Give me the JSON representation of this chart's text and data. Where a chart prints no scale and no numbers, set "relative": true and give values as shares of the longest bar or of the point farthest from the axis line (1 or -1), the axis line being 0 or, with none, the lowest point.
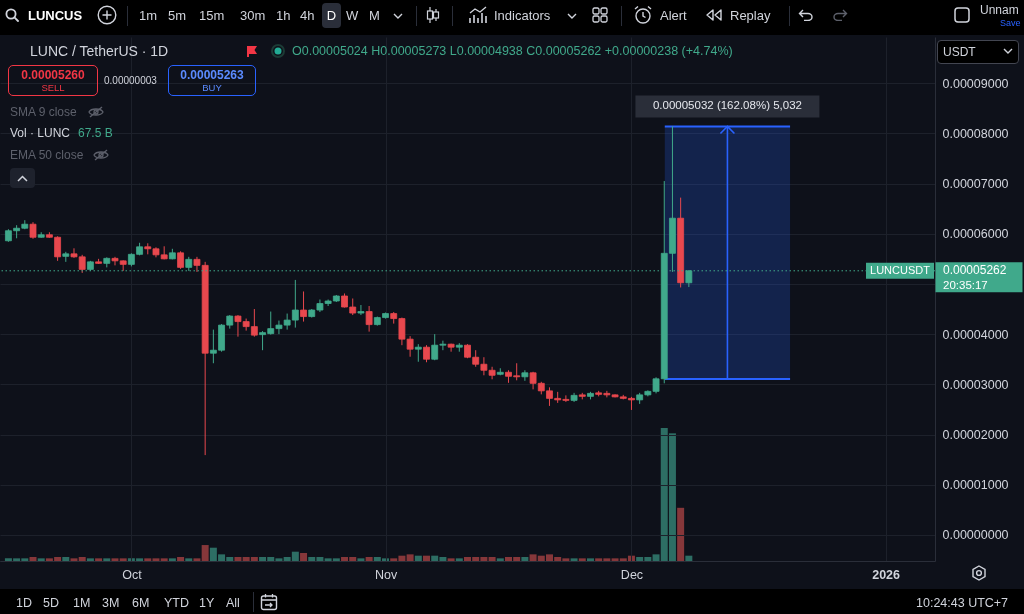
{
  "chart_data": [
    {
      "type": "candlestick",
      "title": "LUNC / TetherUS · 1D",
      "x": [
        "2025-09-16",
        "2025-09-17",
        "2025-09-18",
        "2025-09-19",
        "2025-09-20",
        "2025-09-21",
        "2025-09-22",
        "2025-09-23",
        "2025-09-24",
        "2025-09-25",
        "2025-09-26",
        "2025-09-27",
        "2025-09-28",
        "2025-09-29",
        "2025-09-30",
        "2025-10-01",
        "2025-10-02",
        "2025-10-03",
        "2025-10-04",
        "2025-10-05",
        "2025-10-06",
        "2025-10-07",
        "2025-10-08",
        "2025-10-09",
        "2025-10-10",
        "2025-10-11",
        "2025-10-12",
        "2025-10-13",
        "2025-10-14",
        "2025-10-15",
        "2025-10-16",
        "2025-10-17",
        "2025-10-18",
        "2025-10-19",
        "2025-10-20",
        "2025-10-21",
        "2025-10-22",
        "2025-10-23",
        "2025-10-24",
        "2025-10-25",
        "2025-10-26",
        "2025-10-27",
        "2025-10-28",
        "2025-10-29",
        "2025-10-30",
        "2025-10-31",
        "2025-11-01",
        "2025-11-02",
        "2025-11-03",
        "2025-11-04",
        "2025-11-05",
        "2025-11-06",
        "2025-11-07",
        "2025-11-08",
        "2025-11-09",
        "2025-11-10",
        "2025-11-11",
        "2025-11-12",
        "2025-11-13",
        "2025-11-14",
        "2025-11-15",
        "2025-11-16",
        "2025-11-17",
        "2025-11-18",
        "2025-11-19",
        "2025-11-20",
        "2025-11-21",
        "2025-11-22",
        "2025-11-23",
        "2025-11-24",
        "2025-11-25",
        "2025-11-26",
        "2025-11-27",
        "2025-11-28",
        "2025-11-29",
        "2025-11-30",
        "2025-12-01",
        "2025-12-02",
        "2025-12-03",
        "2025-12-04",
        "2025-12-05",
        "2025-12-06",
        "2025-12-07",
        "2025-12-08"
      ],
      "ohlc": [
        [
          5.86e-05,
          6.09e-05,
          5.84e-05,
          6.06e-05
        ],
        [
          6.06e-05,
          6.17e-05,
          5.91e-05,
          6.11e-05
        ],
        [
          6.11e-05,
          6.27e-05,
          6.09e-05,
          6.19e-05
        ],
        [
          6.19e-05,
          6.23e-05,
          5.9e-05,
          5.93e-05
        ],
        [
          5.93e-05,
          6.03e-05,
          5.92e-05,
          5.98e-05
        ],
        [
          5.98e-05,
          6.03e-05,
          5.92e-05,
          5.93e-05
        ],
        [
          5.93e-05,
          5.95e-05,
          5.46e-05,
          5.54e-05
        ],
        [
          5.55e-05,
          5.64e-05,
          5.44e-05,
          5.6e-05
        ],
        [
          5.6e-05,
          5.71e-05,
          5.52e-05,
          5.54e-05
        ],
        [
          5.54e-05,
          5.58e-05,
          5.22e-05,
          5.29e-05
        ],
        [
          5.29e-05,
          5.46e-05,
          5.26e-05,
          5.44e-05
        ],
        [
          5.44e-05,
          5.5e-05,
          5.4e-05,
          5.41e-05
        ],
        [
          5.41e-05,
          5.53e-05,
          5.33e-05,
          5.51e-05
        ],
        [
          5.51e-05,
          5.54e-05,
          5.37e-05,
          5.46e-05
        ],
        [
          5.46e-05,
          5.47e-05,
          5.26e-05,
          5.39e-05
        ],
        [
          5.39e-05,
          5.61e-05,
          5.35e-05,
          5.59e-05
        ],
        [
          5.59e-05,
          5.82e-05,
          5.57e-05,
          5.74e-05
        ],
        [
          5.74e-05,
          5.81e-05,
          5.59e-05,
          5.7e-05
        ],
        [
          5.7e-05,
          5.73e-05,
          5.53e-05,
          5.58e-05
        ],
        [
          5.58e-05,
          5.75e-05,
          5.49e-05,
          5.5e-05
        ],
        [
          5.5e-05,
          5.7e-05,
          5.49e-05,
          5.62e-05
        ],
        [
          5.62e-05,
          5.65e-05,
          5.3e-05,
          5.33e-05
        ],
        [
          5.33e-05,
          5.54e-05,
          5.26e-05,
          5.49e-05
        ],
        [
          5.49e-05,
          5.54e-05,
          5.24e-05,
          5.37e-05
        ],
        [
          5.37e-05,
          5.44e-05,
          1.59e-05,
          3.62e-05
        ],
        [
          3.62e-05,
          4.09e-05,
          3.42e-05,
          3.68e-05
        ],
        [
          3.68e-05,
          4.2e-05,
          3.65e-05,
          4.18e-05
        ],
        [
          4.18e-05,
          4.38e-05,
          4.11e-05,
          4.36e-05
        ],
        [
          4.36e-05,
          4.38e-05,
          3.95e-05,
          4.25e-05
        ],
        [
          4.25e-05,
          4.31e-05,
          4.07e-05,
          4.15e-05
        ],
        [
          4.15e-05,
          4.5e-05,
          3.95e-05,
          3.98e-05
        ],
        [
          3.99e-05,
          4.06e-05,
          3.68e-05,
          4.03e-05
        ],
        [
          4.01e-05,
          4.45e-05,
          3.99e-05,
          4.11e-05
        ],
        [
          4.11e-05,
          4.27e-05,
          4e-05,
          4.18e-05
        ],
        [
          4.18e-05,
          4.41e-05,
          4.09e-05,
          4.28e-05
        ],
        [
          4.28e-05,
          5.08e-05,
          4.13e-05,
          4.48e-05
        ],
        [
          4.48e-05,
          4.85e-05,
          4.25e-05,
          4.35e-05
        ],
        [
          4.35e-05,
          4.5e-05,
          4.33e-05,
          4.48e-05
        ],
        [
          4.48e-05,
          4.69e-05,
          4.44e-05,
          4.61e-05
        ],
        [
          4.61e-05,
          4.69e-05,
          4.56e-05,
          4.66e-05
        ],
        [
          4.66e-05,
          4.78e-05,
          4.64e-05,
          4.76e-05
        ],
        [
          4.76e-05,
          4.81e-05,
          4.53e-05,
          4.54e-05
        ],
        [
          4.54e-05,
          4.71e-05,
          4.38e-05,
          4.42e-05
        ],
        [
          4.42e-05,
          4.58e-05,
          4.38e-05,
          4.45e-05
        ],
        [
          4.45e-05,
          4.56e-05,
          4.05e-05,
          4.19e-05
        ],
        [
          4.19e-05,
          4.35e-05,
          4.17e-05,
          4.33e-05
        ],
        [
          4.33e-05,
          4.43e-05,
          4.31e-05,
          4.41e-05
        ],
        [
          4.41e-05,
          4.44e-05,
          4.21e-05,
          4.31e-05
        ],
        [
          4.31e-05,
          4.33e-05,
          3.78e-05,
          3.9e-05
        ],
        [
          3.9e-05,
          3.96e-05,
          3.55e-05,
          3.7e-05
        ],
        [
          3.7e-05,
          3.8e-05,
          3.45e-05,
          3.74e-05
        ],
        [
          3.74e-05,
          3.78e-05,
          3.44e-05,
          3.5e-05
        ],
        [
          3.5e-05,
          4e-05,
          3.48e-05,
          3.78e-05
        ],
        [
          3.78e-05,
          3.87e-05,
          3.68e-05,
          3.8e-05
        ],
        [
          3.8e-05,
          3.81e-05,
          3.65e-05,
          3.74e-05
        ],
        [
          3.74e-05,
          3.82e-05,
          3.65e-05,
          3.78e-05
        ],
        [
          3.78e-05,
          3.8e-05,
          3.52e-05,
          3.54e-05
        ],
        [
          3.54e-05,
          3.68e-05,
          3.35e-05,
          3.4e-05
        ],
        [
          3.4e-05,
          3.54e-05,
          3.18e-05,
          3.28e-05
        ],
        [
          3.28e-05,
          3.35e-05,
          3.1e-05,
          3.18e-05
        ],
        [
          3.2e-05,
          3.32e-05,
          3.18e-05,
          3.24e-05
        ],
        [
          3.24e-05,
          3.28e-05,
          3.03e-05,
          3.16e-05
        ],
        [
          3.17e-05,
          3.42e-05,
          3.08e-05,
          3.15e-05
        ],
        [
          3.15e-05,
          3.28e-05,
          3.07e-05,
          3.23e-05
        ],
        [
          3.23e-05,
          3.25e-05,
          2.9e-05,
          3.02e-05
        ],
        [
          3.02e-05,
          3.05e-05,
          2.8e-05,
          2.87e-05
        ],
        [
          2.87e-05,
          2.94e-05,
          2.57e-05,
          2.72e-05
        ],
        [
          2.72e-05,
          2.85e-05,
          2.63e-05,
          2.69e-05
        ],
        [
          2.7e-05,
          2.78e-05,
          2.65e-05,
          2.68e-05
        ],
        [
          2.68e-05,
          2.83e-05,
          2.65e-05,
          2.78e-05
        ],
        [
          2.79e-05,
          2.83e-05,
          2.7e-05,
          2.76e-05
        ],
        [
          2.76e-05,
          2.85e-05,
          2.7e-05,
          2.82e-05
        ],
        [
          2.83e-05,
          2.87e-05,
          2.76e-05,
          2.8e-05
        ],
        [
          2.82e-05,
          2.87e-05,
          2.74e-05,
          2.79e-05
        ],
        [
          2.79e-05,
          2.8e-05,
          2.74e-05,
          2.75e-05
        ],
        [
          2.75e-05,
          2.79e-05,
          2.7e-05,
          2.72e-05
        ],
        [
          2.72e-05,
          2.75e-05,
          2.49e-05,
          2.69e-05
        ],
        [
          2.69e-05,
          2.83e-05,
          2.61e-05,
          2.79e-05
        ],
        [
          2.79e-05,
          2.88e-05,
          2.76e-05,
          2.86e-05
        ],
        [
          2.86e-05,
          3.14e-05,
          2.82e-05,
          3.11e-05
        ],
        [
          3.11e-05,
          7.05e-05,
          3.02e-05,
          5.61e-05
        ],
        [
          5.61e-05,
          8.14e-05,
          5.24e-05,
          6.31e-05
        ],
        [
          6.31e-05,
          6.72e-05,
          4.93e-05,
          5.024e-05
        ],
        [
          5.024e-05,
          5.273e-05,
          4.938e-05,
          5.262e-05
        ]
      ],
      "colors": [
        "#40a98b",
        "#40a98b",
        "#40a98b",
        "#e8484e",
        "#40a98b",
        "#e8484e",
        "#e8484e",
        "#40a98b",
        "#e8484e",
        "#e8484e",
        "#40a98b",
        "#e8484e",
        "#40a98b",
        "#e8484e",
        "#e8484e",
        "#40a98b",
        "#40a98b",
        "#e8484e",
        "#e8484e",
        "#e8484e",
        "#40a98b",
        "#e8484e",
        "#40a98b",
        "#e8484e",
        "#e8484e",
        "#40a98b",
        "#40a98b",
        "#40a98b",
        "#e8484e",
        "#e8484e",
        "#e8484e",
        "#40a98b",
        "#40a98b",
        "#40a98b",
        "#40a98b",
        "#40a98b",
        "#e8484e",
        "#40a98b",
        "#40a98b",
        "#40a98b",
        "#40a98b",
        "#e8484e",
        "#e8484e",
        "#40a98b",
        "#e8484e",
        "#40a98b",
        "#40a98b",
        "#e8484e",
        "#e8484e",
        "#e8484e",
        "#40a98b",
        "#e8484e",
        "#40a98b",
        "#40a98b",
        "#e8484e",
        "#40a98b",
        "#e8484e",
        "#e8484e",
        "#e8484e",
        "#e8484e",
        "#40a98b",
        "#e8484e",
        "#e8484e",
        "#40a98b",
        "#e8484e",
        "#e8484e",
        "#e8484e",
        "#e8484e",
        "#e8484e",
        "#40a98b",
        "#e8484e",
        "#40a98b",
        "#e8484e",
        "#e8484e",
        "#e8484e",
        "#e8484e",
        "#e8484e",
        "#40a98b",
        "#40a98b",
        "#40a98b",
        "#40a98b",
        "#40a98b",
        "#e8484e",
        "#40a98b"
      ],
      "xlim": [
        "2025-09-15T14:00",
        "2026-01-06T10:00"
      ],
      "ylim": [
        -5.2e-06,
        9.92e-05
      ],
      "xticks": [
        {
          "value": "2025-10-01",
          "label": "Oct"
        },
        {
          "value": "2025-11-01",
          "label": "Nov"
        },
        {
          "value": "2025-12-01",
          "label": "Dec"
        },
        {
          "value": "2026-01-01",
          "label": "2026"
        }
      ],
      "yticks": [
        {
          "value": 0,
          "label": "0.00000000"
        },
        {
          "value": 1e-05,
          "label": "0.00001000"
        },
        {
          "value": 2e-05,
          "label": "0.00002000"
        },
        {
          "value": 3e-05,
          "label": "0.00003000"
        },
        {
          "value": 4e-05,
          "label": "0.00004000"
        },
        {
          "value": 5e-05,
          "label": null
        },
        {
          "value": 6e-05,
          "label": "0.00006000"
        },
        {
          "value": 7e-05,
          "label": "0.00007000"
        },
        {
          "value": 8e-05,
          "label": "0.00008000"
        },
        {
          "value": 9e-05,
          "label": "0.00009000"
        }
      ],
      "grid": true,
      "ref_lines": [
        {
          "axis": "y",
          "value": 5.262e-05,
          "label": "LUNCUSDT",
          "color": "#40a98b",
          "line_style": "dotted"
        }
      ],
      "bands": [
        {
          "axis": "y",
          "from": 3.105e-05,
          "to": 8.137e-05,
          "label": "0.00005032 (162.08%) 5,032",
          "color": "#2962ff"
        }
      ],
      "annotations": [
        "LUNCUS",
        "1m",
        "5m",
        "15m",
        "30m",
        "1h",
        "4h",
        "D",
        "W",
        "M",
        "Indicators",
        "Alert",
        "Replay",
        "Unnam",
        "Save",
        "O0.00005024 H0.00005273 L0.00004938 C0.00005262 +0.00000238 (+4.74%)",
        "0.00005260",
        "SELL",
        "0.00000003",
        "0.00005263",
        "BUY",
        "SMA 9 close",
        "Vol · LUNC",
        "67.5 B",
        "EMA 50 close",
        "USDT",
        "20:35:17",
        "1D",
        "5D",
        "1M",
        "3M",
        "6M",
        "YTD",
        "1Y",
        "All",
        "10:24:43 UTC+7",
        "0.00005262"
      ]
    },
    {
      "type": "bar",
      "relative": true,
      "tick_labels": false,
      "x": [
        "2025-09-16",
        "2025-09-17",
        "2025-09-18",
        "2025-09-19",
        "2025-09-20",
        "2025-09-21",
        "2025-09-22",
        "2025-09-23",
        "2025-09-24",
        "2025-09-25",
        "2025-09-26",
        "2025-09-27",
        "2025-09-28",
        "2025-09-29",
        "2025-09-30",
        "2025-10-01",
        "2025-10-02",
        "2025-10-03",
        "2025-10-04",
        "2025-10-05",
        "2025-10-06",
        "2025-10-07",
        "2025-10-08",
        "2025-10-09",
        "2025-10-10",
        "2025-10-11",
        "2025-10-12",
        "2025-10-13",
        "2025-10-14",
        "2025-10-15",
        "2025-10-16",
        "2025-10-17",
        "2025-10-18",
        "2025-10-19",
        "2025-10-20",
        "2025-10-21",
        "2025-10-22",
        "2025-10-23",
        "2025-10-24",
        "2025-10-25",
        "2025-10-26",
        "2025-10-27",
        "2025-10-28",
        "2025-10-29",
        "2025-10-30",
        "2025-10-31",
        "2025-11-01",
        "2025-11-02",
        "2025-11-03",
        "2025-11-04",
        "2025-11-05",
        "2025-11-06",
        "2025-11-07",
        "2025-11-08",
        "2025-11-09",
        "2025-11-10",
        "2025-11-11",
        "2025-11-12",
        "2025-11-13",
        "2025-11-14",
        "2025-11-15",
        "2025-11-16",
        "2025-11-17",
        "2025-11-18",
        "2025-11-19",
        "2025-11-20",
        "2025-11-21",
        "2025-11-22",
        "2025-11-23",
        "2025-11-24",
        "2025-11-25",
        "2025-11-26",
        "2025-11-27",
        "2025-11-28",
        "2025-11-29",
        "2025-11-30",
        "2025-12-01",
        "2025-12-02",
        "2025-12-03",
        "2025-12-04",
        "2025-12-05",
        "2025-12-06",
        "2025-12-07",
        "2025-12-08"
      ],
      "values": [
        0.02,
        0.02,
        0.02,
        0.03,
        0.02,
        0.02,
        0.03,
        0.03,
        0.02,
        0.03,
        0.02,
        0.02,
        0.02,
        0.02,
        0.02,
        0.02,
        0.02,
        0.02,
        0.02,
        0.02,
        0.02,
        0.03,
        0.02,
        0.02,
        0.12,
        0.1,
        0.05,
        0.03,
        0.03,
        0.03,
        0.03,
        0.03,
        0.03,
        0.02,
        0.03,
        0.07,
        0.06,
        0.03,
        0.03,
        0.02,
        0.02,
        0.03,
        0.03,
        0.02,
        0.03,
        0.03,
        0.02,
        0.02,
        0.04,
        0.05,
        0.04,
        0.04,
        0.04,
        0.03,
        0.02,
        0.02,
        0.03,
        0.03,
        0.03,
        0.03,
        0.02,
        0.03,
        0.03,
        0.03,
        0.05,
        0.04,
        0.05,
        0.03,
        0.02,
        0.02,
        0.02,
        0.02,
        0.02,
        0.02,
        0.02,
        0.02,
        0.04,
        0.03,
        0.03,
        0.05,
        1,
        0.96,
        0.4,
        0.04
      ],
      "colors": [
        "#2d6e64",
        "#2d6e64",
        "#2d6e64",
        "#86373a",
        "#2d6e64",
        "#86373a",
        "#86373a",
        "#2d6e64",
        "#86373a",
        "#86373a",
        "#2d6e64",
        "#86373a",
        "#2d6e64",
        "#86373a",
        "#86373a",
        "#2d6e64",
        "#2d6e64",
        "#86373a",
        "#86373a",
        "#86373a",
        "#2d6e64",
        "#86373a",
        "#2d6e64",
        "#86373a",
        "#86373a",
        "#2d6e64",
        "#2d6e64",
        "#2d6e64",
        "#86373a",
        "#86373a",
        "#86373a",
        "#2d6e64",
        "#2d6e64",
        "#2d6e64",
        "#2d6e64",
        "#2d6e64",
        "#86373a",
        "#2d6e64",
        "#2d6e64",
        "#2d6e64",
        "#2d6e64",
        "#86373a",
        "#86373a",
        "#2d6e64",
        "#86373a",
        "#2d6e64",
        "#2d6e64",
        "#86373a",
        "#86373a",
        "#86373a",
        "#2d6e64",
        "#86373a",
        "#2d6e64",
        "#2d6e64",
        "#86373a",
        "#2d6e64",
        "#86373a",
        "#86373a",
        "#86373a",
        "#86373a",
        "#2d6e64",
        "#86373a",
        "#86373a",
        "#2d6e64",
        "#86373a",
        "#86373a",
        "#86373a",
        "#86373a",
        "#86373a",
        "#2d6e64",
        "#86373a",
        "#2d6e64",
        "#86373a",
        "#86373a",
        "#86373a",
        "#86373a",
        "#86373a",
        "#2d6e64",
        "#2d6e64",
        "#2d6e64",
        "#2d6e64",
        "#2d6e64",
        "#86373a",
        "#2d6e64"
      ],
      "xlim": [
        "2025-09-15T14:00",
        "2026-01-06T10:00"
      ]
    }
  ]
}
